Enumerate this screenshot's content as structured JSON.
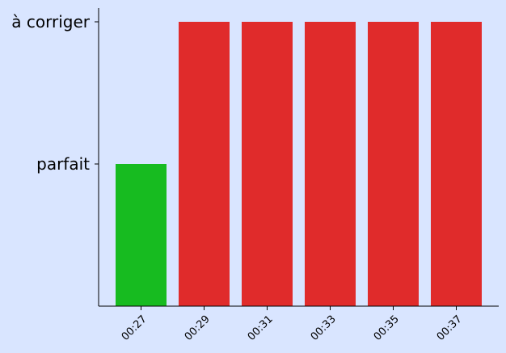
{
  "chart_data": {
    "type": "bar",
    "categories": [
      "00:27",
      "00:29",
      "00:31",
      "00:33",
      "00:35",
      "00:37"
    ],
    "values": [
      1,
      2,
      2,
      2,
      2,
      2
    ],
    "bar_colors": [
      "#17bb20",
      "#e02b2b",
      "#e02b2b",
      "#e02b2b",
      "#e02b2b",
      "#e02b2b"
    ],
    "y_ticks": [
      {
        "value": 1,
        "label": "parfait"
      },
      {
        "value": 2,
        "label": "à corriger"
      }
    ],
    "ylim": [
      0,
      2
    ],
    "title": "",
    "xlabel": "",
    "ylabel": "",
    "grid": false,
    "background_color": "#d9e5ff"
  }
}
